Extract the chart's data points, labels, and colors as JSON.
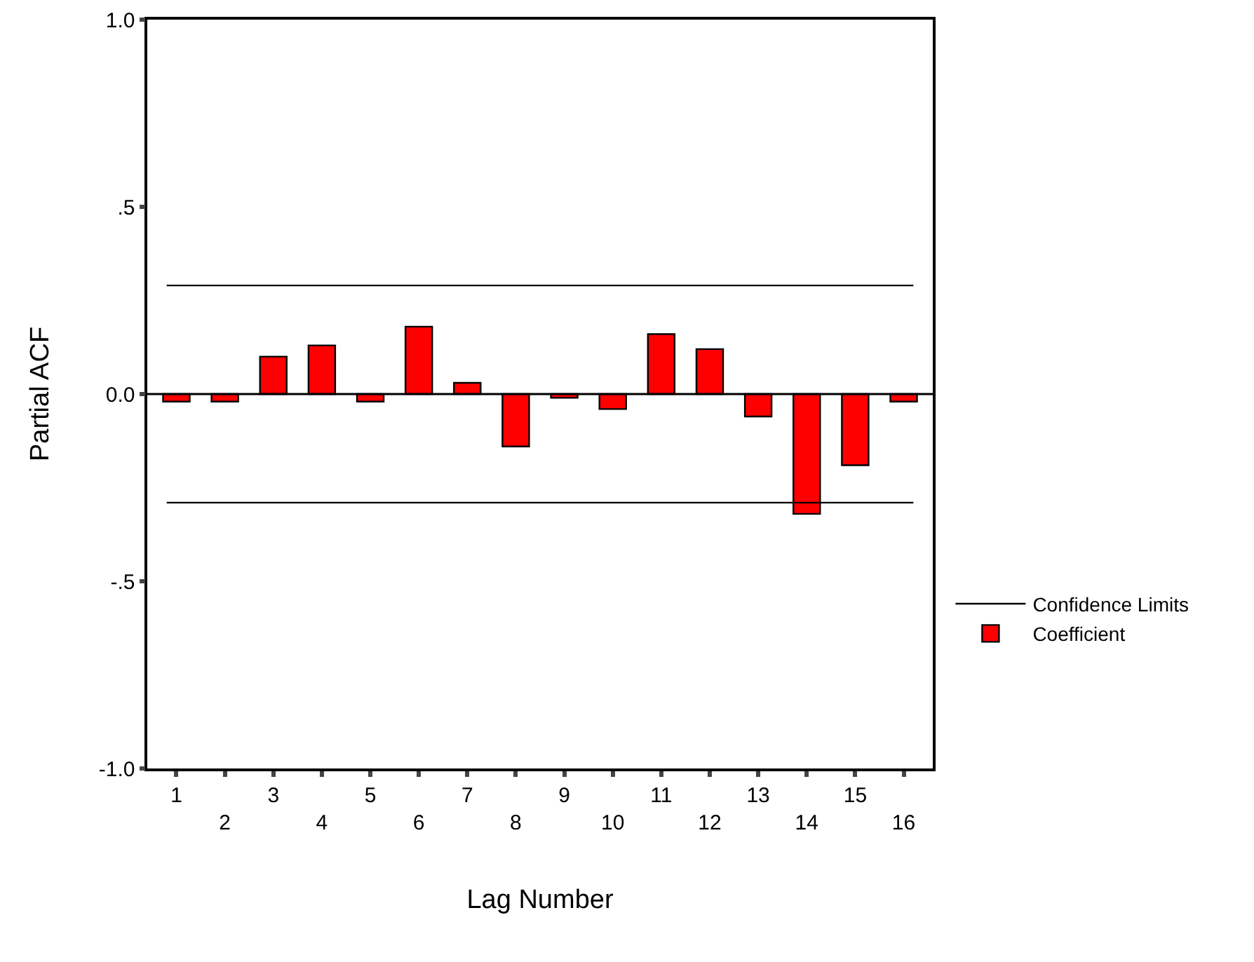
{
  "chart_data": {
    "type": "bar",
    "xlabel": "Lag Number",
    "ylabel": "Partial ACF",
    "categories": [
      "1",
      "2",
      "3",
      "4",
      "5",
      "6",
      "7",
      "8",
      "9",
      "10",
      "11",
      "12",
      "13",
      "14",
      "15",
      "16"
    ],
    "series": [
      {
        "name": "Coefficient",
        "color": "#ff0000",
        "values": [
          -0.02,
          -0.02,
          0.1,
          0.13,
          -0.02,
          0.18,
          0.03,
          -0.14,
          -0.01,
          -0.04,
          0.16,
          0.12,
          -0.06,
          -0.32,
          -0.19,
          -0.02
        ]
      }
    ],
    "ylim": [
      -1,
      1
    ],
    "yticks": [
      {
        "value": -1,
        "label": "-1.0"
      },
      {
        "value": -0.5,
        "label": "-.5"
      },
      {
        "value": 0,
        "label": "0.0"
      },
      {
        "value": 0.5,
        "label": ".5"
      },
      {
        "value": 1,
        "label": "1.0"
      }
    ],
    "ref_lines": [
      {
        "axis": "y",
        "value": 0.29,
        "label": "Confidence Limits",
        "color": "#000000"
      },
      {
        "axis": "y",
        "value": -0.29,
        "color": "#000000"
      }
    ],
    "legend": "right"
  }
}
